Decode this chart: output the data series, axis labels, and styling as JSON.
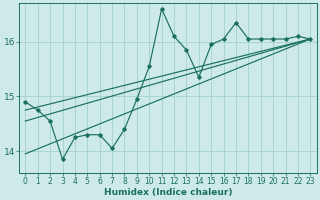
{
  "xlabel": "Humidex (Indice chaleur)",
  "ylabel": "",
  "bg_color": "#ceeae8",
  "grid_color": "#a8d4d2",
  "line_color": "#1a7060",
  "xlim": [
    -0.5,
    23.5
  ],
  "ylim": [
    13.6,
    16.7
  ],
  "yticks": [
    14,
    15,
    16
  ],
  "xticks": [
    0,
    1,
    2,
    3,
    4,
    5,
    6,
    7,
    8,
    9,
    10,
    11,
    12,
    13,
    14,
    15,
    16,
    17,
    18,
    19,
    20,
    21,
    22,
    23
  ],
  "series1_x": [
    0,
    1,
    2,
    3,
    4,
    5,
    6,
    7,
    8,
    9,
    10,
    11,
    12,
    13,
    14,
    15,
    16,
    17,
    18,
    19,
    20,
    21,
    22,
    23
  ],
  "series1_y": [
    14.9,
    14.75,
    14.55,
    13.85,
    14.25,
    14.3,
    14.3,
    14.05,
    14.4,
    14.95,
    15.55,
    16.6,
    16.1,
    15.85,
    15.35,
    15.95,
    16.05,
    16.35,
    16.05,
    16.05,
    16.05,
    16.05,
    16.1,
    16.05
  ],
  "series2_x": [
    0,
    23
  ],
  "series2_y": [
    14.55,
    16.05
  ],
  "series3_x": [
    0,
    23
  ],
  "series3_y": [
    13.95,
    16.05
  ],
  "series4_x": [
    0,
    23
  ],
  "series4_y": [
    14.75,
    16.05
  ]
}
